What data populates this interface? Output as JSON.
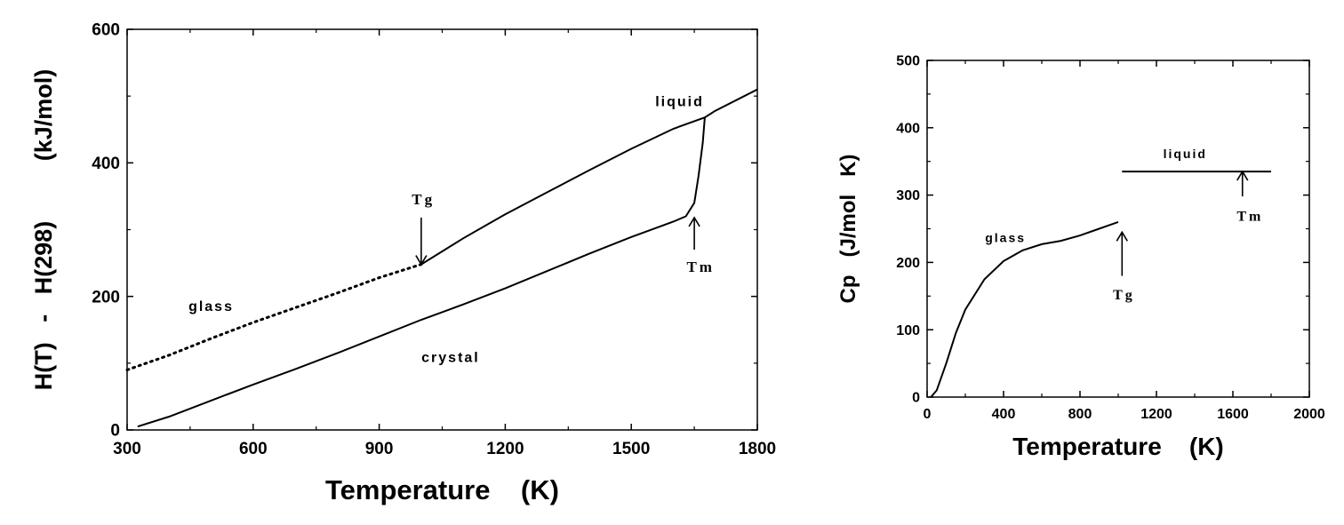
{
  "chart_data": [
    {
      "type": "line",
      "xlabel": "Temperature    (K)",
      "ylabel": "H(T)   -   H(298)         (kJ/mol)",
      "xlim": [
        300,
        1800
      ],
      "ylim": [
        0,
        600
      ],
      "xticks": [
        300,
        600,
        900,
        1200,
        1500,
        1800
      ],
      "xtick_labels": [
        "300",
        "600",
        "900",
        "1200",
        "1500",
        "1800"
      ],
      "yticks": [
        0,
        200,
        400,
        600
      ],
      "ytick_labels": [
        "0",
        "200",
        "400",
        "600"
      ],
      "grid": false,
      "series": [
        {
          "name": "glass",
          "style": "dotted",
          "x": [
            300,
            400,
            500,
            600,
            700,
            800,
            900,
            1000
          ],
          "y": [
            90,
            112,
            137,
            161,
            183,
            205,
            228,
            248
          ]
        },
        {
          "name": "liquid",
          "style": "solid",
          "x": [
            1000,
            1100,
            1200,
            1300,
            1400,
            1500,
            1600,
            1675,
            1700,
            1800
          ],
          "y": [
            248,
            287,
            323,
            356,
            389,
            421,
            451,
            468,
            478,
            510
          ]
        },
        {
          "name": "crystal",
          "style": "solid",
          "x": [
            325,
            400,
            500,
            600,
            700,
            800,
            900,
            1000,
            1100,
            1200,
            1300,
            1400,
            1500,
            1600,
            1630,
            1650,
            1660,
            1670,
            1675
          ],
          "y": [
            5,
            20,
            44,
            68,
            91,
            115,
            140,
            165,
            188,
            212,
            238,
            264,
            289,
            312,
            320,
            340,
            380,
            430,
            468
          ]
        }
      ],
      "annotations": [
        {
          "text": "liquid",
          "x": 1615,
          "y": 485,
          "font": "sans"
        },
        {
          "text": "glass",
          "x": 500,
          "y": 178,
          "font": "sans"
        },
        {
          "text": "crystal",
          "x": 1070,
          "y": 102,
          "font": "sans"
        },
        {
          "text": "Tg",
          "x": 1005,
          "y": 338,
          "font": "serif"
        },
        {
          "text": "Tm",
          "x": 1665,
          "y": 237,
          "font": "serif"
        }
      ],
      "arrows": [
        {
          "label": "Tg",
          "x": 1000,
          "y_from": 318,
          "y_to": 248,
          "direction": "down"
        },
        {
          "label": "Tm",
          "x": 1650,
          "y_from": 270,
          "y_to": 318,
          "direction": "up"
        }
      ]
    },
    {
      "type": "line",
      "xlabel": "Temperature    (K)",
      "ylabel": "Cp   (J/mol   K)",
      "xlim": [
        0,
        2000
      ],
      "ylim": [
        0,
        500
      ],
      "xticks": [
        0,
        400,
        800,
        1200,
        1600,
        2000
      ],
      "xtick_labels": [
        "0",
        "400",
        "800",
        "1200",
        "1600",
        "2000"
      ],
      "yticks": [
        0,
        100,
        200,
        300,
        400,
        500
      ],
      "ytick_labels": [
        "0",
        "100",
        "200",
        "300",
        "400",
        "500"
      ],
      "grid": false,
      "series": [
        {
          "name": "glass",
          "style": "solid",
          "x": [
            20,
            50,
            100,
            150,
            200,
            300,
            400,
            500,
            600,
            700,
            800,
            900,
            1000
          ],
          "y": [
            0,
            10,
            50,
            95,
            130,
            175,
            202,
            218,
            227,
            232,
            240,
            250,
            260
          ]
        },
        {
          "name": "liquid",
          "style": "solid",
          "x": [
            1020,
            1800
          ],
          "y": [
            335,
            335
          ]
        }
      ],
      "annotations": [
        {
          "text": "liquid",
          "x": 1350,
          "y": 355,
          "font": "sans"
        },
        {
          "text": "glass",
          "x": 410,
          "y": 230,
          "font": "sans"
        },
        {
          "text": "Tg",
          "x": 1030,
          "y": 145,
          "font": "serif"
        },
        {
          "text": "Tm",
          "x": 1690,
          "y": 262,
          "font": "serif"
        }
      ],
      "arrows": [
        {
          "label": "Tg",
          "x": 1020,
          "y_from": 180,
          "y_to": 245,
          "direction": "up"
        },
        {
          "label": "Tm",
          "x": 1650,
          "y_from": 298,
          "y_to": 335,
          "direction": "up"
        }
      ]
    }
  ]
}
